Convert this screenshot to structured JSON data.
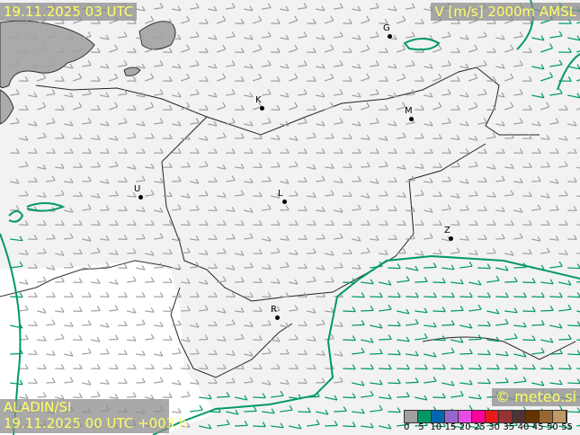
{
  "header": {
    "valid_time": "19.11.2025 03 UTC",
    "parameter": "V [m/s] 2000m AMSL"
  },
  "footer": {
    "model": "ALADIN/SI",
    "run": "19.11.2025 00 UTC +003 h",
    "copyright": "© meteo.si"
  },
  "cities": [
    {
      "label": "G"
    },
    {
      "label": "K"
    },
    {
      "label": "M"
    },
    {
      "label": "U"
    },
    {
      "label": "L"
    },
    {
      "label": "Z"
    },
    {
      "label": "R"
    }
  ],
  "legend": {
    "ticks": [
      "0",
      "5",
      "10",
      "15",
      "20",
      "25",
      "30",
      "35",
      "40",
      "45",
      "50",
      "55"
    ],
    "colors": [
      "#a0a0a0",
      "#009966",
      "#0066b3",
      "#9966cc",
      "#e64de6",
      "#ff0099",
      "#e61a1a",
      "#993333",
      "#4d3333",
      "#663300",
      "#996633",
      "#bf9966"
    ]
  }
}
